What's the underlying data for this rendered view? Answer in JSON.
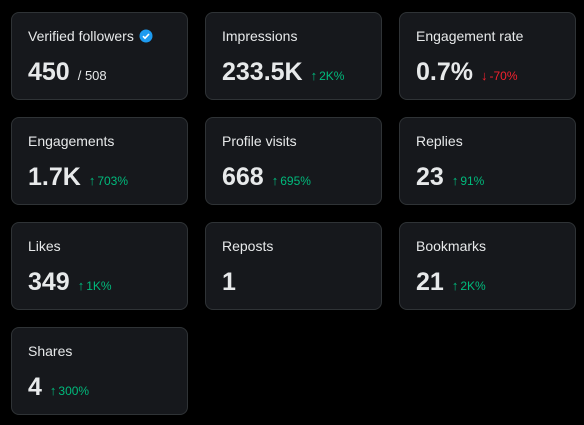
{
  "cards": [
    {
      "label": "Verified followers",
      "value": "450",
      "total": "/ 508",
      "verified": true
    },
    {
      "label": "Impressions",
      "value": "233.5K",
      "change": "2K%",
      "trend": "up"
    },
    {
      "label": "Engagement rate",
      "value": "0.7%",
      "change": "-70%",
      "trend": "down"
    },
    {
      "label": "Engagements",
      "value": "1.7K",
      "change": "703%",
      "trend": "up"
    },
    {
      "label": "Profile visits",
      "value": "668",
      "change": "695%",
      "trend": "up"
    },
    {
      "label": "Replies",
      "value": "23",
      "change": "91%",
      "trend": "up"
    },
    {
      "label": "Likes",
      "value": "349",
      "change": "1K%",
      "trend": "up"
    },
    {
      "label": "Reposts",
      "value": "1"
    },
    {
      "label": "Bookmarks",
      "value": "21",
      "change": "2K%",
      "trend": "up"
    },
    {
      "label": "Shares",
      "value": "4",
      "change": "300%",
      "trend": "up"
    }
  ]
}
